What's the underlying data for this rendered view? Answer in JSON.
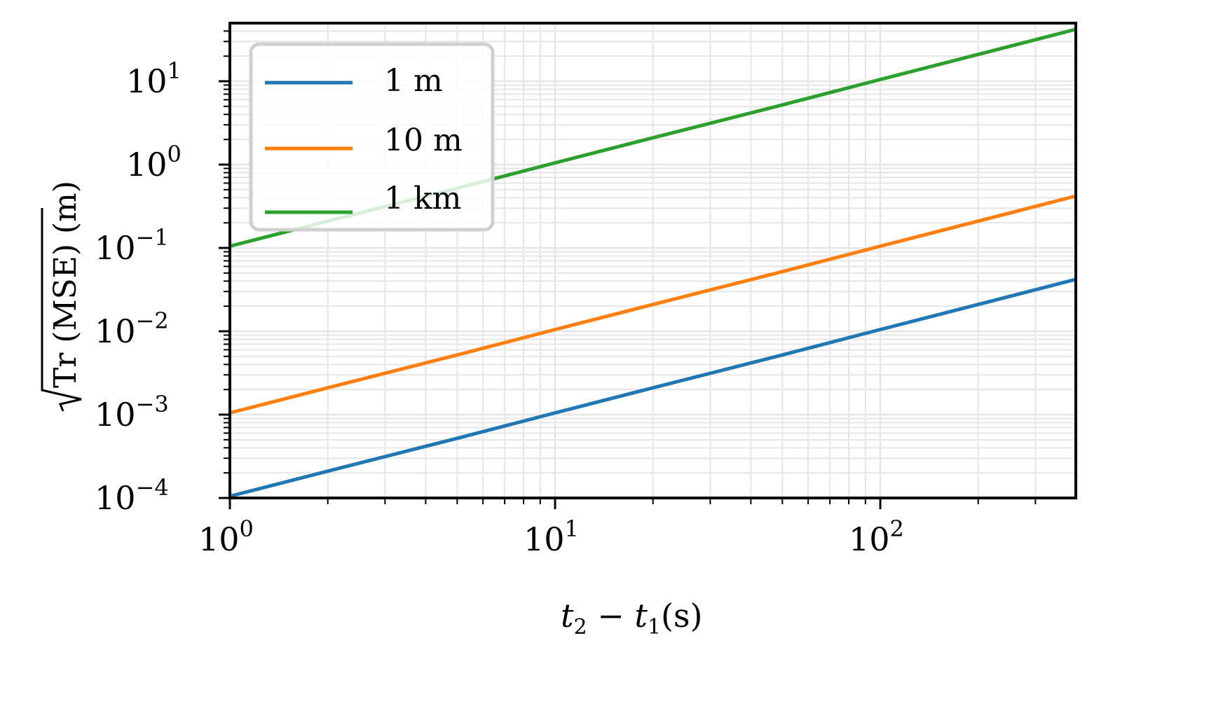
{
  "chart_data": {
    "type": "line",
    "title": "",
    "xlabel": "t2 − t1 (s)",
    "ylabel": "√Tr(MSE) (m)",
    "xscale": "log",
    "yscale": "log",
    "xlim": [
      1,
      400
    ],
    "ylim": [
      0.0001,
      45
    ],
    "grid": "both major and minor, light gray",
    "legend_position": "upper left",
    "x_ticks": [
      "10^0",
      "10^1",
      "10^2"
    ],
    "y_ticks": [
      "10^-4",
      "10^-3",
      "10^-2",
      "10^-1",
      "10^0",
      "10^1"
    ],
    "x": [
      1,
      2,
      5,
      10,
      20,
      50,
      100,
      200,
      400
    ],
    "series": [
      {
        "name": "1 m",
        "color": "#1f77b4",
        "values": [
          0.000105,
          0.00021,
          0.00052,
          0.00105,
          0.0021,
          0.0052,
          0.0105,
          0.021,
          0.042
        ]
      },
      {
        "name": "10 m",
        "color": "#ff7f0e",
        "values": [
          0.00105,
          0.0021,
          0.0052,
          0.0105,
          0.021,
          0.052,
          0.105,
          0.21,
          0.42
        ]
      },
      {
        "name": "1 km",
        "color": "#2ca02c",
        "values": [
          0.105,
          0.21,
          0.52,
          1.05,
          2.1,
          5.2,
          10.5,
          21,
          42
        ]
      }
    ]
  },
  "labels": {
    "xlabel_t2": "t",
    "xlabel_sub2": "2",
    "xlabel_minus": " − ",
    "xlabel_t1": "t",
    "xlabel_sub1": "1",
    "xlabel_unit": "(s)",
    "ylabel_main": "Tr (MSE) (m)",
    "legend": [
      "1 m",
      "10 m",
      "1 km"
    ]
  }
}
